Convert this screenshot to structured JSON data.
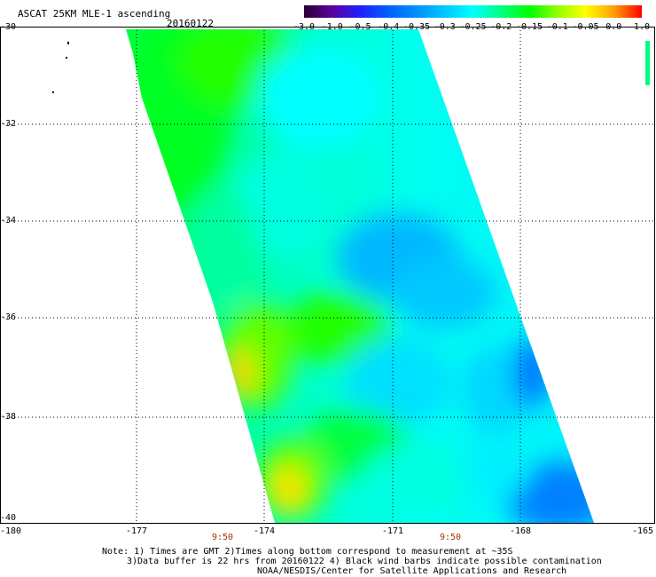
{
  "header": {
    "title": "ASCAT 25KM MLE-1 ascending",
    "date": "20160122"
  },
  "colorbar": {
    "labels": [
      "-3.0",
      "-1.0",
      "-0.5",
      "-0.4",
      "-0.35",
      "-0.3",
      "-0.25",
      "-0.2",
      "-0.15",
      "-0.1",
      "-0.05",
      "0.0",
      "1.0"
    ],
    "colors": [
      "#2a0030",
      "#5a00a0",
      "#2020ff",
      "#0060ff",
      "#0090ff",
      "#00c8ff",
      "#00ffff",
      "#00ff80",
      "#00ff00",
      "#90ff00",
      "#ffff00",
      "#ffa000",
      "#ff0000"
    ]
  },
  "map": {
    "lat_labels": [
      "-30",
      "-32",
      "-34",
      "-36",
      "-38",
      "-40"
    ],
    "lon_labels": [
      "-180",
      "-177",
      "-174",
      "-171",
      "-168",
      "-165"
    ],
    "time_labels": [
      "9:50",
      "9:50"
    ]
  },
  "footer": {
    "note1": "Note: 1) Times are GMT 2)Times along bottom correspond to measurement at ~35S",
    "note2": "3)Data buffer is 22 hrs from 20160122 4) Black wind barbs indicate possible contamination",
    "note3": "NOAA/NESDIS/Center for Satellite Applications and Research"
  }
}
